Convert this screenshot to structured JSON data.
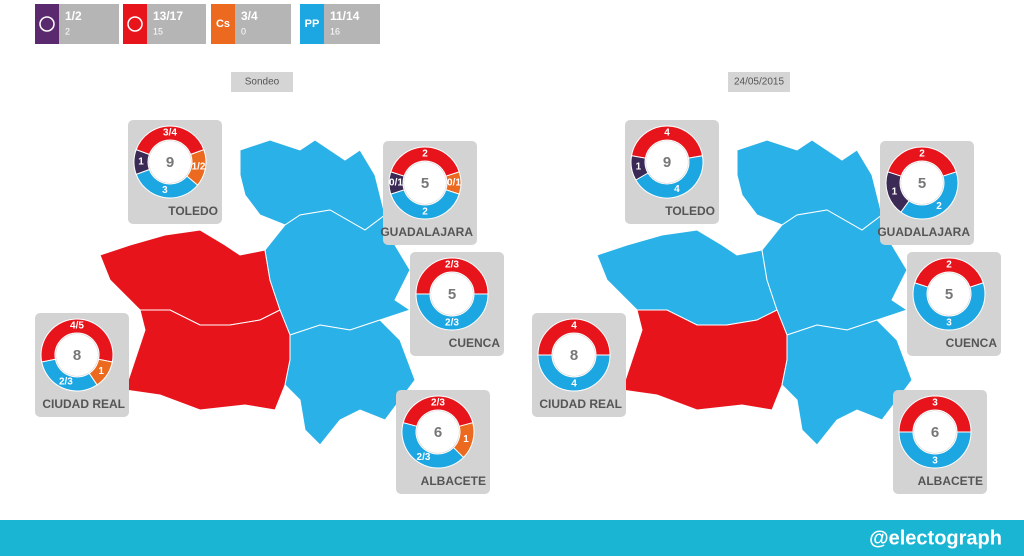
{
  "legend": [
    {
      "range": "1/2",
      "seats": 2,
      "color": "#5b2a6e"
    },
    {
      "range": "13/17",
      "seats": 15,
      "color": "#e8141b"
    },
    {
      "range": "3/4",
      "seats": 0,
      "color": "#eb6a1f",
      "icon_text": "Cs"
    },
    {
      "range": "11/14",
      "seats": 16,
      "color": "#1ca6e2",
      "icon_text": "PP"
    }
  ],
  "panels": [
    {
      "title": "Sondeo",
      "provinces": [
        {
          "name": "TOLEDO",
          "total": 9,
          "map_color": "#e8141b",
          "segments": [
            {
              "label": "3/4",
              "value": 3.5,
              "color": "#e8141b"
            },
            {
              "label": "1/2",
              "value": 1.5,
              "color": "#eb6a1f"
            },
            {
              "value": 3,
              "color": "#1ca6e2"
            },
            {
              "value": 1,
              "color": "#3a2a55"
            }
          ]
        },
        {
          "name": "GUADALAJARA",
          "total": 5,
          "map_color": "#29b1e8",
          "segments": [
            {
              "value": 2,
              "color": "#e8141b"
            },
            {
              "label": "0/1",
              "value": 0.5,
              "color": "#eb6a1f"
            },
            {
              "value": 2,
              "color": "#1ca6e2"
            },
            {
              "label": "0/1",
              "value": 0.5,
              "color": "#3a2a55"
            }
          ]
        },
        {
          "name": "CUENCA",
          "total": 5,
          "map_color": "#29b1e8",
          "segments": [
            {
              "label": "2/3",
              "value": 2.5,
              "color": "#e8141b"
            },
            {
              "label": "2/3",
              "value": 2.5,
              "color": "#1ca6e2"
            }
          ]
        },
        {
          "name": "CIUDAD REAL",
          "total": 8,
          "map_color": "#e8141b",
          "segments": [
            {
              "label": "4/5",
              "value": 4.5,
              "color": "#e8141b"
            },
            {
              "value": 1,
              "color": "#eb6a1f"
            },
            {
              "label": "2/3",
              "value": 2.5,
              "color": "#1ca6e2"
            }
          ]
        },
        {
          "name": "ALBACETE",
          "total": 6,
          "map_color": "#29b1e8",
          "segments": [
            {
              "label": "2/3",
              "value": 2.5,
              "color": "#e8141b"
            },
            {
              "value": 1,
              "color": "#eb6a1f"
            },
            {
              "label": "2/3",
              "value": 2.5,
              "color": "#1ca6e2"
            }
          ]
        }
      ]
    },
    {
      "title": "24/05/2015",
      "provinces": [
        {
          "name": "TOLEDO",
          "total": 9,
          "map_color": "#29b1e8",
          "segments": [
            {
              "value": 4,
              "color": "#e8141b"
            },
            {
              "value": 4,
              "color": "#1ca6e2"
            },
            {
              "value": 1,
              "color": "#3a2a55"
            }
          ]
        },
        {
          "name": "GUADALAJARA",
          "total": 5,
          "map_color": "#29b1e8",
          "segments": [
            {
              "value": 2,
              "color": "#e8141b"
            },
            {
              "value": 2,
              "color": "#1ca6e2"
            },
            {
              "value": 1,
              "color": "#3a2a55"
            }
          ]
        },
        {
          "name": "CUENCA",
          "total": 5,
          "map_color": "#29b1e8",
          "segments": [
            {
              "value": 2,
              "color": "#e8141b"
            },
            {
              "value": 3,
              "color": "#1ca6e2"
            }
          ]
        },
        {
          "name": "CIUDAD REAL",
          "total": 8,
          "map_color": "#e8141b",
          "segments": [
            {
              "value": 4,
              "color": "#e8141b"
            },
            {
              "value": 4,
              "color": "#1ca6e2"
            }
          ]
        },
        {
          "name": "ALBACETE",
          "total": 6,
          "map_color": "#29b1e8",
          "segments": [
            {
              "value": 3,
              "color": "#e8141b"
            },
            {
              "value": 3,
              "color": "#1ca6e2"
            }
          ]
        }
      ]
    }
  ],
  "footer": "@electograph"
}
